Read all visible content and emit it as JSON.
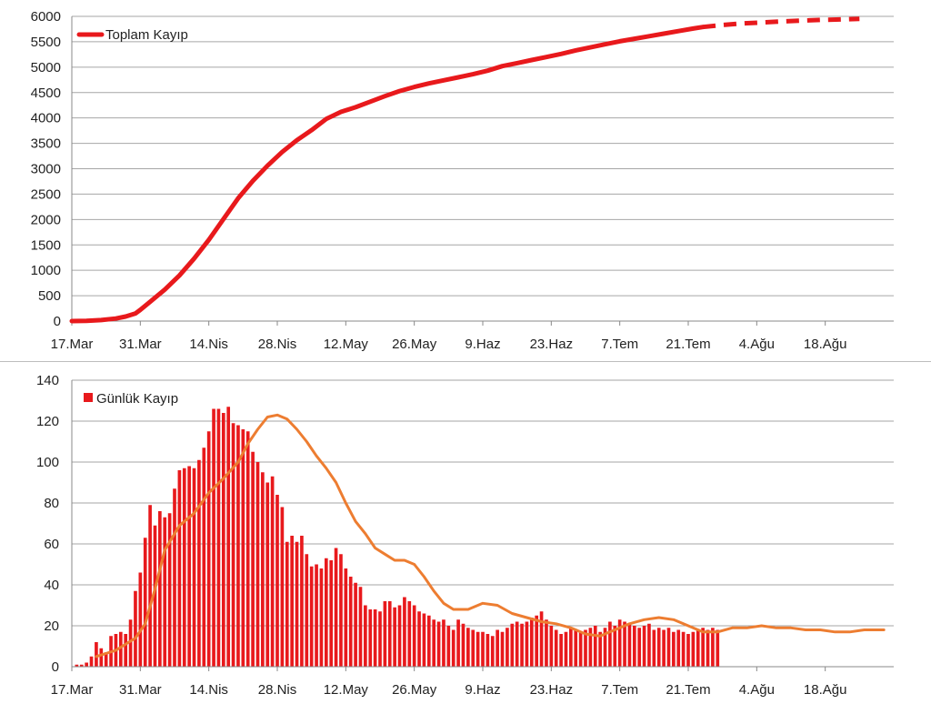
{
  "chart_data": [
    {
      "type": "line",
      "x_ticks": [
        "17.Mar",
        "31.Mar",
        "14.Nis",
        "28.Nis",
        "12.May",
        "26.May",
        "9.Haz",
        "23.Haz",
        "7.Tem",
        "21.Tem",
        "4.Ağu",
        "18.Ağu"
      ],
      "y_ticks": [
        0,
        500,
        1000,
        1500,
        2000,
        2500,
        3000,
        3500,
        4000,
        4500,
        5000,
        5500,
        6000
      ],
      "ylim": [
        0,
        6000
      ],
      "x_range_days": [
        0,
        168
      ],
      "grid": true,
      "legend_position": "top-left",
      "series": [
        {
          "name": "Toplam Kayıp",
          "color": "#e8191c",
          "style": "solid",
          "points": [
            [
              0,
              0
            ],
            [
              3,
              5
            ],
            [
              6,
              20
            ],
            [
              9,
              50
            ],
            [
              11,
              90
            ],
            [
              13,
              150
            ],
            [
              14,
              220
            ],
            [
              16,
              380
            ],
            [
              19,
              620
            ],
            [
              22,
              900
            ],
            [
              25,
              1230
            ],
            [
              28,
              1600
            ],
            [
              31,
              2010
            ],
            [
              34,
              2420
            ],
            [
              37,
              2760
            ],
            [
              40,
              3060
            ],
            [
              43,
              3330
            ],
            [
              46,
              3560
            ],
            [
              49,
              3760
            ],
            [
              52,
              3980
            ],
            [
              55,
              4120
            ],
            [
              58,
              4210
            ],
            [
              61,
              4320
            ],
            [
              64,
              4430
            ],
            [
              67,
              4530
            ],
            [
              70,
              4610
            ],
            [
              73,
              4680
            ],
            [
              76,
              4740
            ],
            [
              79,
              4800
            ],
            [
              82,
              4860
            ],
            [
              85,
              4930
            ],
            [
              88,
              5020
            ],
            [
              91,
              5080
            ],
            [
              94,
              5140
            ],
            [
              97,
              5200
            ],
            [
              100,
              5260
            ],
            [
              103,
              5330
            ],
            [
              106,
              5390
            ],
            [
              109,
              5450
            ],
            [
              112,
              5510
            ],
            [
              115,
              5560
            ],
            [
              118,
              5610
            ],
            [
              121,
              5660
            ],
            [
              124,
              5710
            ],
            [
              127,
              5760
            ],
            [
              129,
              5790
            ]
          ]
        },
        {
          "name": "",
          "color": "#e8191c",
          "style": "dashed",
          "points": [
            [
              129,
              5790
            ],
            [
              133,
              5830
            ],
            [
              137,
              5860
            ],
            [
              141,
              5880
            ],
            [
              145,
              5900
            ],
            [
              149,
              5915
            ],
            [
              153,
              5930
            ],
            [
              157,
              5940
            ],
            [
              161,
              5950
            ]
          ]
        }
      ]
    },
    {
      "type": "bar",
      "x_ticks": [
        "17.Mar",
        "31.Mar",
        "14.Nis",
        "28.Nis",
        "12.May",
        "26.May",
        "9.Haz",
        "23.Haz",
        "7.Tem",
        "21.Tem",
        "4.Ağu",
        "18.Ağu"
      ],
      "y_ticks": [
        0,
        20,
        40,
        60,
        80,
        100,
        120,
        140
      ],
      "ylim": [
        0,
        140
      ],
      "x_range_days": [
        0,
        168
      ],
      "grid": true,
      "legend_position": "top-left",
      "bar_series": {
        "name": "Günlük Kayıp",
        "color": "#e8191c",
        "start_day": 1,
        "values": [
          1,
          1,
          2,
          5,
          12,
          9,
          7,
          15,
          16,
          17,
          16,
          23,
          37,
          46,
          63,
          79,
          69,
          76,
          73,
          75,
          87,
          96,
          97,
          98,
          97,
          101,
          107,
          115,
          126,
          126,
          124,
          127,
          119,
          118,
          116,
          115,
          105,
          100,
          95,
          90,
          93,
          84,
          78,
          61,
          64,
          61,
          64,
          55,
          49,
          50,
          48,
          53,
          52,
          58,
          55,
          48,
          44,
          41,
          39,
          30,
          28,
          28,
          27,
          32,
          32,
          29,
          30,
          34,
          32,
          30,
          27,
          26,
          25,
          23,
          22,
          23,
          20,
          18,
          23,
          21,
          19,
          18,
          17,
          17,
          16,
          15,
          18,
          17,
          19,
          21,
          22,
          21,
          22,
          24,
          25,
          27,
          23,
          20,
          18,
          16,
          17,
          19,
          18,
          17,
          18,
          19,
          20,
          17,
          19,
          22,
          20,
          23,
          22,
          21,
          20,
          19,
          20,
          21,
          18,
          19,
          18,
          19,
          17,
          18,
          17,
          16,
          17,
          18,
          19,
          18,
          19,
          18
        ]
      },
      "line_series": {
        "name": "",
        "color": "#ed7d31",
        "points": [
          [
            5,
            5
          ],
          [
            9,
            8
          ],
          [
            13,
            14
          ],
          [
            15,
            21
          ],
          [
            17,
            38
          ],
          [
            19,
            57
          ],
          [
            22,
            69
          ],
          [
            25,
            75
          ],
          [
            28,
            85
          ],
          [
            31,
            92
          ],
          [
            34,
            100
          ],
          [
            36,
            109
          ],
          [
            38,
            116
          ],
          [
            40,
            122
          ],
          [
            42,
            123
          ],
          [
            44,
            121
          ],
          [
            46,
            116
          ],
          [
            48,
            110
          ],
          [
            50,
            103
          ],
          [
            52,
            97
          ],
          [
            54,
            90
          ],
          [
            56,
            80
          ],
          [
            58,
            71
          ],
          [
            60,
            65
          ],
          [
            62,
            58
          ],
          [
            64,
            55
          ],
          [
            66,
            52
          ],
          [
            68,
            52
          ],
          [
            70,
            50
          ],
          [
            72,
            44
          ],
          [
            74,
            37
          ],
          [
            76,
            31
          ],
          [
            78,
            28
          ],
          [
            81,
            28
          ],
          [
            84,
            31
          ],
          [
            87,
            30
          ],
          [
            90,
            26
          ],
          [
            93,
            24
          ],
          [
            96,
            22
          ],
          [
            99,
            21
          ],
          [
            102,
            19
          ],
          [
            105,
            16
          ],
          [
            108,
            15
          ],
          [
            111,
            18
          ],
          [
            114,
            21
          ],
          [
            117,
            23
          ],
          [
            120,
            24
          ],
          [
            123,
            23
          ],
          [
            126,
            20
          ],
          [
            129,
            17
          ],
          [
            132,
            17
          ],
          [
            135,
            19
          ],
          [
            138,
            19
          ],
          [
            141,
            20
          ],
          [
            144,
            19
          ],
          [
            147,
            19
          ],
          [
            150,
            18
          ],
          [
            153,
            18
          ],
          [
            156,
            17
          ],
          [
            159,
            17
          ],
          [
            162,
            18
          ],
          [
            166,
            18
          ]
        ]
      }
    }
  ]
}
